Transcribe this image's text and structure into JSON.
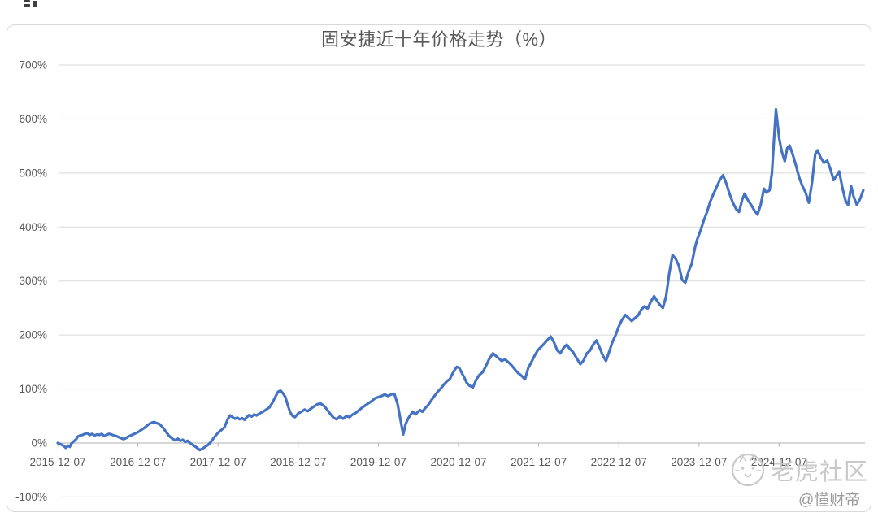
{
  "title": "固安捷近十年价格走势（%）",
  "watermark": {
    "brand": "老虎社区",
    "handle": "@懂财帝"
  },
  "colors": {
    "line": "#4472C4",
    "gridline": "#D9D9D9",
    "axis": "#BFBFBF",
    "tick_text": "#595959",
    "title_text": "#595959",
    "watermark": "#C9C9C9",
    "handle_text": "#9B9B9B"
  },
  "chart_data": {
    "type": "line",
    "title": "固安捷近十年价格走势（%）",
    "xlabel": "",
    "ylabel": "",
    "ylim": [
      -100,
      700
    ],
    "y_ticks_pct": [
      700,
      600,
      500,
      400,
      300,
      200,
      100,
      0,
      -100
    ],
    "y_tick_labels": [
      "700%",
      "600%",
      "500%",
      "400%",
      "300%",
      "200%",
      "100%",
      "0%",
      "-100%"
    ],
    "x_tick_labels": [
      "2015-12-07",
      "2016-12-07",
      "2017-12-07",
      "2018-12-07",
      "2019-12-07",
      "2020-12-07",
      "2021-12-07",
      "2022-12-07",
      "2023-12-07",
      "2024-12-07"
    ],
    "x_axis_unit": "years since 2015-12-07",
    "x_range_years": [
      0,
      10.05
    ],
    "grid": "horizontal",
    "legend": "none",
    "series": [
      {
        "name": "固安捷",
        "color": "#4472C4",
        "points_unit": [
          "years_since_2015-12-07",
          "pct_change"
        ],
        "points": [
          [
            0.0,
            0
          ],
          [
            0.03,
            -2
          ],
          [
            0.06,
            -4
          ],
          [
            0.08,
            -6
          ],
          [
            0.1,
            -9
          ],
          [
            0.13,
            -5
          ],
          [
            0.15,
            -7
          ],
          [
            0.17,
            -1
          ],
          [
            0.2,
            3
          ],
          [
            0.23,
            7
          ],
          [
            0.25,
            12
          ],
          [
            0.28,
            14
          ],
          [
            0.31,
            15
          ],
          [
            0.34,
            17
          ],
          [
            0.37,
            18
          ],
          [
            0.4,
            15
          ],
          [
            0.43,
            17
          ],
          [
            0.46,
            14
          ],
          [
            0.49,
            16
          ],
          [
            0.52,
            15
          ],
          [
            0.55,
            17
          ],
          [
            0.58,
            13
          ],
          [
            0.61,
            15
          ],
          [
            0.64,
            17
          ],
          [
            0.67,
            16
          ],
          [
            0.7,
            14
          ],
          [
            0.73,
            13
          ],
          [
            0.76,
            11
          ],
          [
            0.79,
            9
          ],
          [
            0.82,
            7
          ],
          [
            0.85,
            9
          ],
          [
            0.88,
            12
          ],
          [
            0.91,
            14
          ],
          [
            0.94,
            16
          ],
          [
            0.97,
            18
          ],
          [
            1.0,
            20
          ],
          [
            1.04,
            24
          ],
          [
            1.08,
            28
          ],
          [
            1.12,
            33
          ],
          [
            1.16,
            37
          ],
          [
            1.2,
            39
          ],
          [
            1.23,
            37
          ],
          [
            1.27,
            35
          ],
          [
            1.31,
            29
          ],
          [
            1.35,
            21
          ],
          [
            1.39,
            13
          ],
          [
            1.43,
            8
          ],
          [
            1.47,
            5
          ],
          [
            1.5,
            8
          ],
          [
            1.53,
            4
          ],
          [
            1.56,
            6
          ],
          [
            1.59,
            2
          ],
          [
            1.62,
            4
          ],
          [
            1.65,
            0
          ],
          [
            1.68,
            -3
          ],
          [
            1.71,
            -6
          ],
          [
            1.74,
            -9
          ],
          [
            1.77,
            -13
          ],
          [
            1.8,
            -11
          ],
          [
            1.84,
            -7
          ],
          [
            1.88,
            -3
          ],
          [
            1.92,
            4
          ],
          [
            1.96,
            12
          ],
          [
            2.0,
            19
          ],
          [
            2.04,
            24
          ],
          [
            2.08,
            29
          ],
          [
            2.12,
            44
          ],
          [
            2.15,
            51
          ],
          [
            2.18,
            48
          ],
          [
            2.21,
            45
          ],
          [
            2.24,
            47
          ],
          [
            2.27,
            44
          ],
          [
            2.3,
            46
          ],
          [
            2.33,
            43
          ],
          [
            2.36,
            48
          ],
          [
            2.39,
            52
          ],
          [
            2.42,
            49
          ],
          [
            2.45,
            53
          ],
          [
            2.48,
            51
          ],
          [
            2.52,
            55
          ],
          [
            2.56,
            58
          ],
          [
            2.6,
            62
          ],
          [
            2.64,
            66
          ],
          [
            2.68,
            75
          ],
          [
            2.72,
            87
          ],
          [
            2.75,
            95
          ],
          [
            2.78,
            97
          ],
          [
            2.81,
            92
          ],
          [
            2.84,
            85
          ],
          [
            2.87,
            70
          ],
          [
            2.9,
            57
          ],
          [
            2.93,
            50
          ],
          [
            2.96,
            48
          ],
          [
            3.0,
            55
          ],
          [
            3.04,
            58
          ],
          [
            3.08,
            62
          ],
          [
            3.12,
            59
          ],
          [
            3.16,
            64
          ],
          [
            3.2,
            68
          ],
          [
            3.24,
            72
          ],
          [
            3.28,
            73
          ],
          [
            3.32,
            69
          ],
          [
            3.36,
            62
          ],
          [
            3.4,
            54
          ],
          [
            3.44,
            47
          ],
          [
            3.48,
            44
          ],
          [
            3.52,
            49
          ],
          [
            3.56,
            45
          ],
          [
            3.6,
            50
          ],
          [
            3.64,
            48
          ],
          [
            3.68,
            53
          ],
          [
            3.72,
            56
          ],
          [
            3.76,
            61
          ],
          [
            3.8,
            66
          ],
          [
            3.84,
            70
          ],
          [
            3.88,
            74
          ],
          [
            3.92,
            78
          ],
          [
            3.96,
            83
          ],
          [
            4.0,
            85
          ],
          [
            4.04,
            87
          ],
          [
            4.08,
            90
          ],
          [
            4.12,
            87
          ],
          [
            4.16,
            90
          ],
          [
            4.2,
            91
          ],
          [
            4.24,
            72
          ],
          [
            4.28,
            40
          ],
          [
            4.31,
            16
          ],
          [
            4.34,
            35
          ],
          [
            4.37,
            45
          ],
          [
            4.4,
            52
          ],
          [
            4.43,
            58
          ],
          [
            4.46,
            53
          ],
          [
            4.49,
            57
          ],
          [
            4.52,
            61
          ],
          [
            4.55,
            58
          ],
          [
            4.58,
            64
          ],
          [
            4.62,
            70
          ],
          [
            4.66,
            79
          ],
          [
            4.7,
            87
          ],
          [
            4.74,
            95
          ],
          [
            4.78,
            101
          ],
          [
            4.82,
            109
          ],
          [
            4.86,
            115
          ],
          [
            4.89,
            118
          ],
          [
            4.92,
            127
          ],
          [
            4.95,
            135
          ],
          [
            4.98,
            141
          ],
          [
            5.01,
            139
          ],
          [
            5.04,
            130
          ],
          [
            5.07,
            122
          ],
          [
            5.1,
            112
          ],
          [
            5.14,
            106
          ],
          [
            5.18,
            103
          ],
          [
            5.22,
            117
          ],
          [
            5.26,
            126
          ],
          [
            5.3,
            131
          ],
          [
            5.34,
            142
          ],
          [
            5.38,
            155
          ],
          [
            5.43,
            166
          ],
          [
            5.46,
            162
          ],
          [
            5.5,
            157
          ],
          [
            5.54,
            152
          ],
          [
            5.58,
            155
          ],
          [
            5.62,
            150
          ],
          [
            5.66,
            144
          ],
          [
            5.7,
            137
          ],
          [
            5.74,
            130
          ],
          [
            5.79,
            124
          ],
          [
            5.83,
            118
          ],
          [
            5.87,
            139
          ],
          [
            5.91,
            150
          ],
          [
            5.95,
            162
          ],
          [
            5.99,
            172
          ],
          [
            6.03,
            178
          ],
          [
            6.07,
            184
          ],
          [
            6.11,
            191
          ],
          [
            6.15,
            197
          ],
          [
            6.19,
            187
          ],
          [
            6.23,
            172
          ],
          [
            6.27,
            166
          ],
          [
            6.31,
            176
          ],
          [
            6.35,
            182
          ],
          [
            6.39,
            174
          ],
          [
            6.43,
            168
          ],
          [
            6.47,
            158
          ],
          [
            6.52,
            146
          ],
          [
            6.56,
            153
          ],
          [
            6.6,
            166
          ],
          [
            6.64,
            171
          ],
          [
            6.68,
            182
          ],
          [
            6.72,
            190
          ],
          [
            6.76,
            177
          ],
          [
            6.8,
            162
          ],
          [
            6.84,
            152
          ],
          [
            6.88,
            169
          ],
          [
            6.92,
            187
          ],
          [
            6.96,
            200
          ],
          [
            7.0,
            216
          ],
          [
            7.04,
            228
          ],
          [
            7.08,
            237
          ],
          [
            7.12,
            232
          ],
          [
            7.16,
            226
          ],
          [
            7.2,
            231
          ],
          [
            7.24,
            236
          ],
          [
            7.28,
            247
          ],
          [
            7.32,
            253
          ],
          [
            7.36,
            249
          ],
          [
            7.4,
            262
          ],
          [
            7.44,
            272
          ],
          [
            7.47,
            265
          ],
          [
            7.51,
            256
          ],
          [
            7.55,
            250
          ],
          [
            7.59,
            272
          ],
          [
            7.63,
            315
          ],
          [
            7.67,
            348
          ],
          [
            7.71,
            341
          ],
          [
            7.75,
            328
          ],
          [
            7.79,
            302
          ],
          [
            7.83,
            297
          ],
          [
            7.87,
            318
          ],
          [
            7.91,
            332
          ],
          [
            7.95,
            362
          ],
          [
            7.98,
            378
          ],
          [
            8.02,
            394
          ],
          [
            8.06,
            412
          ],
          [
            8.1,
            428
          ],
          [
            8.14,
            447
          ],
          [
            8.18,
            461
          ],
          [
            8.22,
            474
          ],
          [
            8.26,
            487
          ],
          [
            8.3,
            496
          ],
          [
            8.34,
            481
          ],
          [
            8.38,
            462
          ],
          [
            8.42,
            446
          ],
          [
            8.46,
            434
          ],
          [
            8.5,
            428
          ],
          [
            8.54,
            451
          ],
          [
            8.57,
            462
          ],
          [
            8.61,
            450
          ],
          [
            8.65,
            441
          ],
          [
            8.69,
            431
          ],
          [
            8.73,
            423
          ],
          [
            8.77,
            441
          ],
          [
            8.81,
            471
          ],
          [
            8.84,
            464
          ],
          [
            8.88,
            468
          ],
          [
            8.91,
            500
          ],
          [
            8.94,
            572
          ],
          [
            8.96,
            618
          ],
          [
            8.98,
            592
          ],
          [
            9.0,
            565
          ],
          [
            9.03,
            541
          ],
          [
            9.07,
            522
          ],
          [
            9.1,
            546
          ],
          [
            9.13,
            551
          ],
          [
            9.17,
            534
          ],
          [
            9.21,
            514
          ],
          [
            9.25,
            492
          ],
          [
            9.29,
            476
          ],
          [
            9.33,
            464
          ],
          [
            9.37,
            445
          ],
          [
            9.41,
            482
          ],
          [
            9.45,
            535
          ],
          [
            9.48,
            542
          ],
          [
            9.52,
            528
          ],
          [
            9.56,
            519
          ],
          [
            9.6,
            523
          ],
          [
            9.64,
            507
          ],
          [
            9.68,
            487
          ],
          [
            9.72,
            496
          ],
          [
            9.75,
            503
          ],
          [
            9.79,
            472
          ],
          [
            9.83,
            448
          ],
          [
            9.86,
            441
          ],
          [
            9.9,
            475
          ],
          [
            9.93,
            456
          ],
          [
            9.97,
            441
          ],
          [
            10.01,
            452
          ],
          [
            10.05,
            468
          ]
        ]
      }
    ]
  }
}
